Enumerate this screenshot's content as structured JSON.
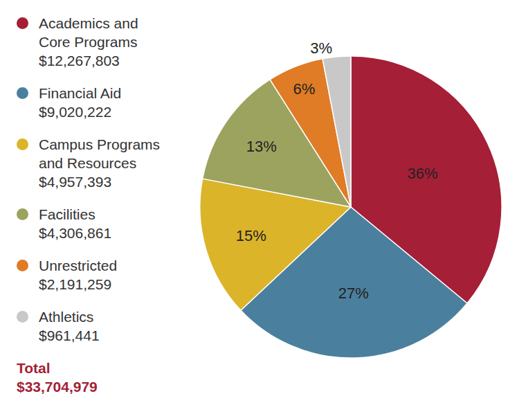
{
  "chart_data": {
    "type": "pie",
    "categories": [
      "Academics and Core Programs",
      "Financial Aid",
      "Campus Programs and Resources",
      "Facilities",
      "Unrestricted",
      "Athletics"
    ],
    "values": [
      36,
      27,
      15,
      13,
      6,
      3
    ],
    "value_labels": [
      "36%",
      "27%",
      "15%",
      "13%",
      "6%",
      "3%"
    ],
    "amounts": [
      "$12,267,803",
      "$9,020,222",
      "$4,957,393",
      "$4,306,861",
      "$2,191,259",
      "$961,441"
    ],
    "total_label": "Total",
    "total": "$33,704,979",
    "colors": [
      "#a51f36",
      "#4a809e",
      "#dbb42a",
      "#9ca35f",
      "#e07b26",
      "#c8c8c8"
    ],
    "data_labels": true,
    "legend": "left"
  }
}
